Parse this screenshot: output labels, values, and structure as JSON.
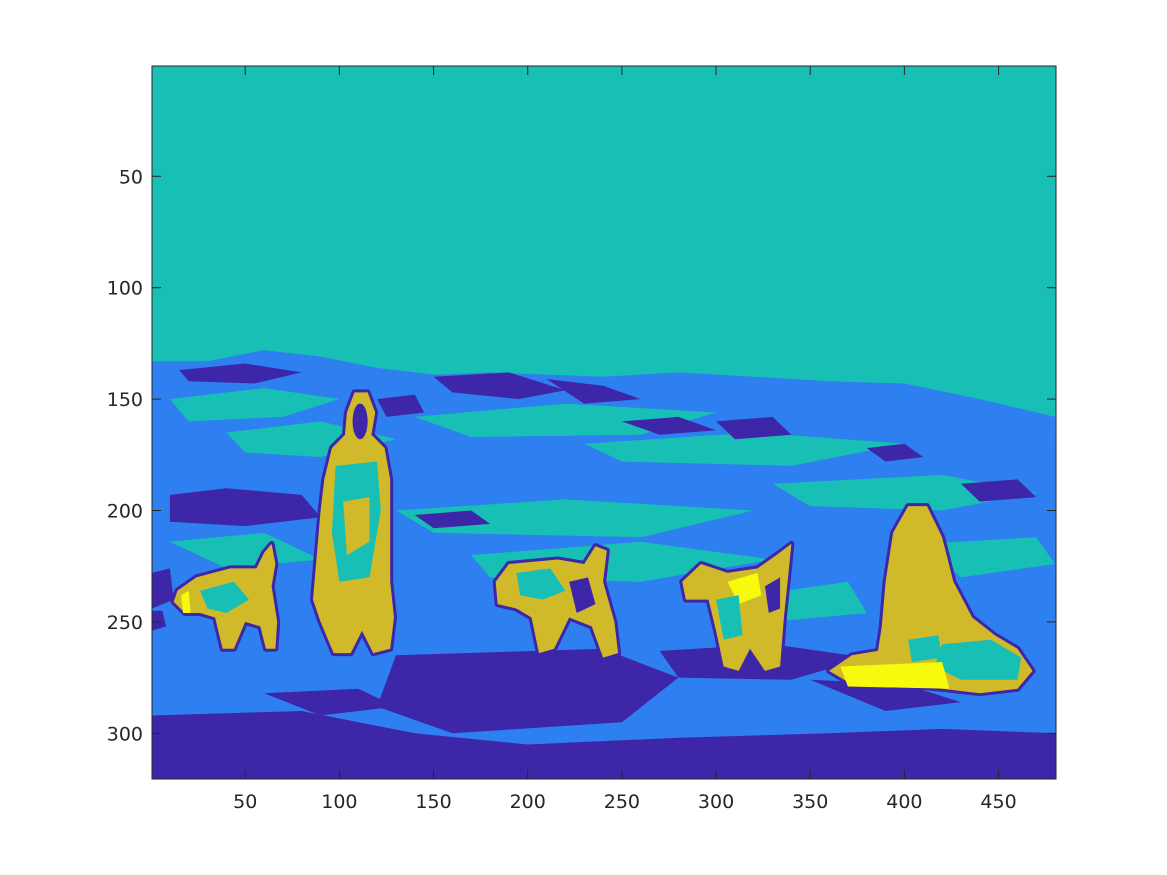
{
  "chart_data": {
    "type": "heatmap",
    "title": "",
    "xlabel": "",
    "ylabel": "",
    "xlim": [
      0.5,
      480.5
    ],
    "ylim": [
      0.5,
      320.5
    ],
    "y_direction": "reversed",
    "grid": false,
    "legend": "none",
    "x_ticks": [
      "50",
      "100",
      "150",
      "200",
      "250",
      "300",
      "350",
      "400",
      "450"
    ],
    "y_ticks": [
      "50",
      "100",
      "150",
      "200",
      "250",
      "300"
    ],
    "x_tick_values": [
      50,
      100,
      150,
      200,
      250,
      300,
      350,
      400,
      450
    ],
    "y_tick_values": [
      50,
      100,
      150,
      200,
      250,
      300
    ],
    "image_size": {
      "columns": 480,
      "rows": 320
    },
    "colormap": {
      "levels": [
        1,
        2,
        3,
        4,
        5
      ],
      "colors": [
        "#3e26a8",
        "#2e7ff0",
        "#18bfb4",
        "#d0ba2a",
        "#f8fa0d"
      ]
    },
    "regions": [
      {
        "label": "sky",
        "level": 3
      },
      {
        "label": "horizon and water",
        "level": 2
      },
      {
        "label": "dark patches",
        "level": 1
      },
      {
        "label": "figures",
        "level": 4
      },
      {
        "label": "highlights",
        "level": 5
      }
    ]
  }
}
